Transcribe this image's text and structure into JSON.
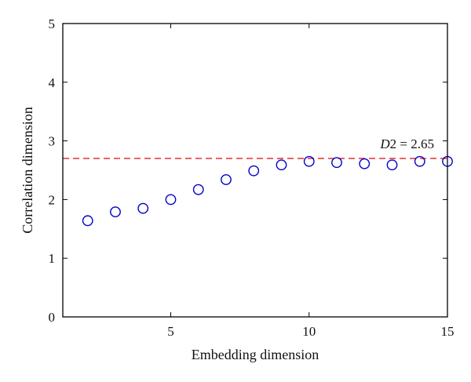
{
  "chart_data": {
    "type": "scatter",
    "title": "",
    "xlabel": "Embedding dimension",
    "ylabel": "Correlation dimension",
    "xlim": [
      1.1,
      15
    ],
    "ylim": [
      0,
      5
    ],
    "xticks": [
      5,
      10,
      15
    ],
    "yticks": [
      0,
      1,
      2,
      3,
      4,
      5
    ],
    "grid": false,
    "series": [
      {
        "marker": "open-circle",
        "color": "#0000cc",
        "x": [
          2,
          3,
          4,
          5,
          6,
          7,
          8,
          9,
          10,
          11,
          12,
          13,
          14,
          15
        ],
        "y": [
          1.64,
          1.79,
          1.85,
          2.0,
          2.17,
          2.34,
          2.49,
          2.59,
          2.65,
          2.63,
          2.61,
          2.59,
          2.65,
          2.65
        ]
      }
    ],
    "reference_line": {
      "y": 2.7,
      "style": "dashed",
      "color": "#e03030"
    },
    "annotation": {
      "italic_part": "D",
      "text_part": "2 = 2.65"
    }
  }
}
